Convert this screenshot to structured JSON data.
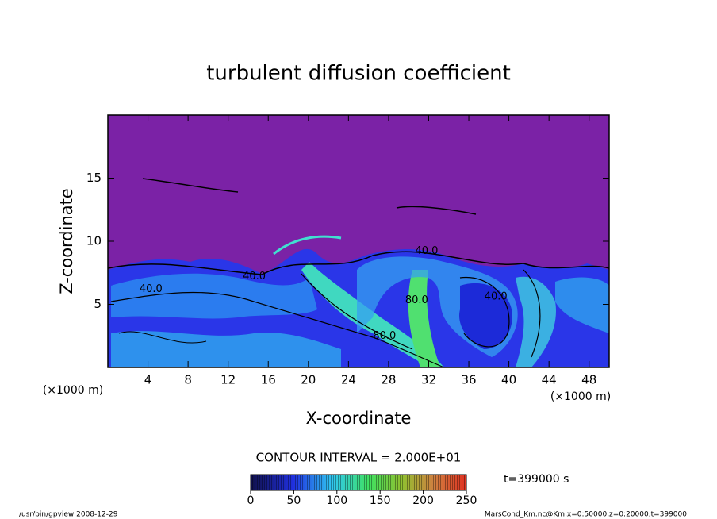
{
  "chart_data": {
    "type": "contour",
    "title": "turbulent diffusion coefficient",
    "xlabel": "X-coordinate",
    "ylabel": "Z-coordinate",
    "xunit": "(×1000 m)",
    "yunit": "(×1000 m)",
    "xlim": [
      0,
      50
    ],
    "ylim": [
      0,
      20
    ],
    "xticks": [
      4,
      8,
      12,
      16,
      20,
      24,
      28,
      32,
      36,
      40,
      44,
      48
    ],
    "yticks": [
      5,
      10,
      15
    ],
    "contour_interval": "CONTOUR INTERVAL = 2.000E+01",
    "contour_labels": [
      {
        "text": "40.0",
        "x": 4.3,
        "z": 6.2
      },
      {
        "text": "40.0",
        "x": 14.6,
        "z": 7.2
      },
      {
        "text": "40.0",
        "x": 31.8,
        "z": 9.2
      },
      {
        "text": "80.0",
        "x": 30.8,
        "z": 5.3
      },
      {
        "text": "80.0",
        "x": 27.6,
        "z": 2.5
      },
      {
        "text": "40.0",
        "x": 38.7,
        "z": 5.6
      }
    ],
    "clim": [
      0,
      250
    ],
    "cticks": [
      0,
      50,
      100,
      150,
      200,
      250
    ],
    "time_label": "t=399000 s",
    "footer_left": "/usr/bin/gpview   2008-12-29",
    "footer_right": "MarsCond_Km.nc@Km,x=0:50000,z=0:20000,t=399000"
  }
}
